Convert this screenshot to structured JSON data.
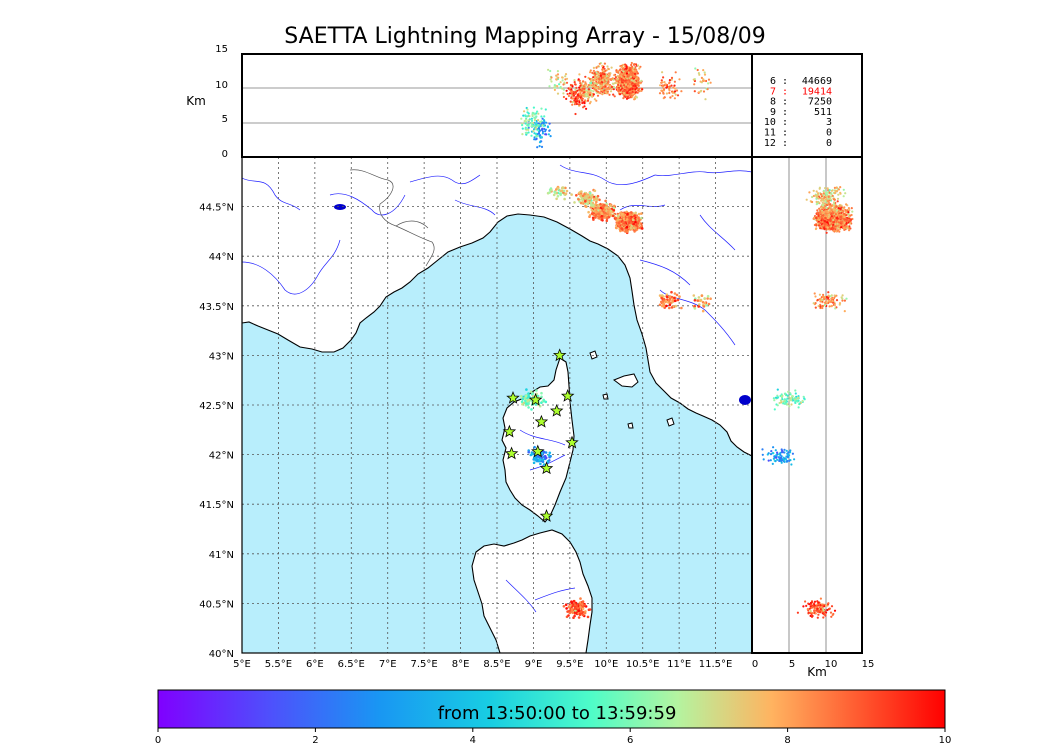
{
  "title": "SAETTA Lightning Mapping Array - 15/08/09",
  "alt_panel": {
    "ylabel": "Km",
    "yticks": [
      "0",
      "5",
      "10",
      "15"
    ]
  },
  "side_panel": {
    "xlabel": "Km",
    "xticks": [
      "0",
      "5",
      "10",
      "15"
    ]
  },
  "map": {
    "lon_ticks": [
      "5°E",
      "5.5°E",
      "6°E",
      "6.5°E",
      "7°E",
      "7.5°E",
      "8°E",
      "8.5°E",
      "9°E",
      "9.5°E",
      "10°E",
      "10.5°E",
      "11°E",
      "11.5°E"
    ],
    "lat_ticks": [
      "40°N",
      "40.5°N",
      "41°N",
      "41.5°N",
      "42°N",
      "42.5°N",
      "43°N",
      "43.5°N",
      "44°N",
      "44.5°N"
    ],
    "stations": [
      [
        9.36,
        43.0
      ],
      [
        8.72,
        42.57
      ],
      [
        9.03,
        42.55
      ],
      [
        9.47,
        42.59
      ],
      [
        8.67,
        42.23
      ],
      [
        9.11,
        42.33
      ],
      [
        9.32,
        42.44
      ],
      [
        8.7,
        42.01
      ],
      [
        9.06,
        42.03
      ],
      [
        9.53,
        42.12
      ],
      [
        9.18,
        41.86
      ],
      [
        9.18,
        41.38
      ]
    ],
    "colors": {
      "sea": "#b8eefc",
      "land": "#ffffff",
      "station": "#adff2f"
    }
  },
  "stats": [
    {
      "label": "6 :",
      "value": "44669",
      "color": "#000000"
    },
    {
      "label": "7 :",
      "value": "19414",
      "color": "#ff0000"
    },
    {
      "label": "8 :",
      "value": "7250",
      "color": "#000000"
    },
    {
      "label": "9 :",
      "value": "511",
      "color": "#000000"
    },
    {
      "label": "10 :",
      "value": "3",
      "color": "#000000"
    },
    {
      "label": "11 :",
      "value": "0",
      "color": "#000000"
    },
    {
      "label": "12 :",
      "value": "0",
      "color": "#000000"
    }
  ],
  "colorbar": {
    "label": "from 13:50:00 to 13:59:59",
    "ticks": [
      "0",
      "2",
      "4",
      "6",
      "8",
      "10"
    ],
    "colormap": "rainbow"
  },
  "chart_data": {
    "type": "scatter",
    "title": "SAETTA Lightning Mapping Array - 15/08/09",
    "xlim": [
      5,
      12
    ],
    "ylim": [
      40,
      45
    ],
    "alt_lim": [
      0,
      15
    ],
    "time_range_minutes": [
      0,
      10
    ],
    "clusters": [
      {
        "lon": 10.3,
        "lat": 44.35,
        "alt_mean": 11,
        "time": 8.5,
        "count": 900
      },
      {
        "lon": 9.95,
        "lat": 44.45,
        "alt_mean": 11,
        "time": 8.2,
        "count": 280
      },
      {
        "lon": 9.75,
        "lat": 44.58,
        "alt_mean": 10,
        "time": 7.5,
        "count": 100
      },
      {
        "lon": 9.1,
        "lat": 41.98,
        "alt_mean": 4,
        "time": 3.0,
        "count": 80
      },
      {
        "lon": 9.0,
        "lat": 42.56,
        "alt_mean": 5,
        "time": 6.0,
        "count": 90
      },
      {
        "lon": 9.6,
        "lat": 40.45,
        "alt_mean": 9,
        "time": 8.8,
        "count": 120
      },
      {
        "lon": 10.85,
        "lat": 43.55,
        "alt_mean": 10,
        "time": 8.6,
        "count": 60
      },
      {
        "lon": 11.3,
        "lat": 43.55,
        "alt_mean": 11,
        "time": 7.8,
        "count": 30
      },
      {
        "lon": 9.35,
        "lat": 44.65,
        "alt_mean": 11,
        "time": 7.0,
        "count": 40
      }
    ],
    "altitude_counts": [
      {
        "alt": 6,
        "count": 44669
      },
      {
        "alt": 7,
        "count": 19414
      },
      {
        "alt": 8,
        "count": 7250
      },
      {
        "alt": 9,
        "count": 511
      },
      {
        "alt": 10,
        "count": 3
      },
      {
        "alt": 11,
        "count": 0
      },
      {
        "alt": 12,
        "count": 0
      }
    ]
  }
}
